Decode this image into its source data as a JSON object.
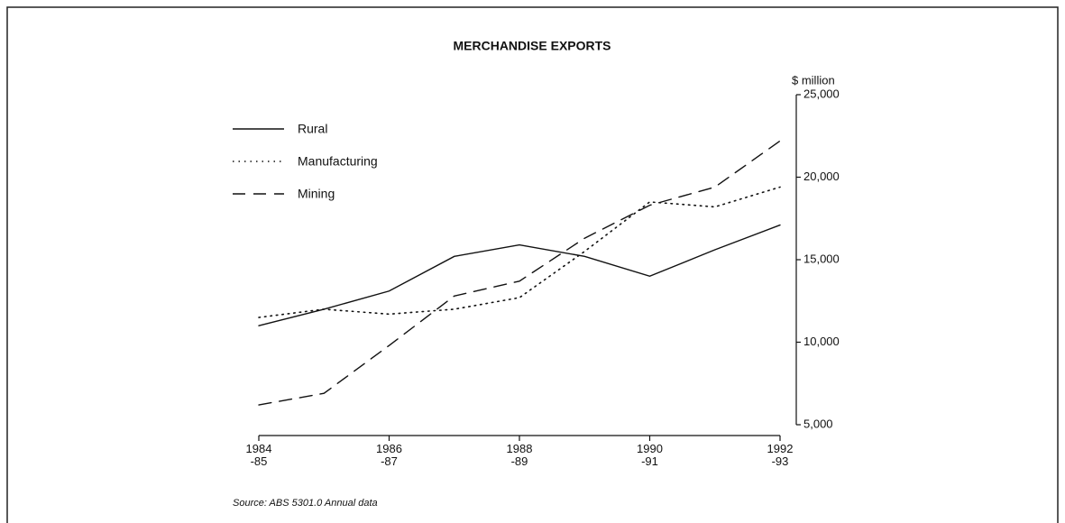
{
  "chart_data": {
    "type": "line",
    "title": "MERCHANDISE EXPORTS",
    "y_label": "$ million",
    "source": "Source: ABS 5301.0 Annual data",
    "categories": [
      "1984\n-85",
      null,
      "1986\n-87",
      null,
      "1988\n-89",
      null,
      "1990\n-91",
      null,
      "1992\n-93"
    ],
    "series": [
      {
        "name": "Rural",
        "color": "#111111",
        "style": "solid",
        "values": [
          11000,
          12000,
          13100,
          15200,
          15900,
          15200,
          14000,
          15600,
          17100
        ]
      },
      {
        "name": "Manufacturing",
        "color": "#111111",
        "style": "dotted",
        "values": [
          11500,
          12000,
          11700,
          12000,
          12700,
          15500,
          18500,
          18200,
          19400
        ]
      },
      {
        "name": "Mining",
        "color": "#111111",
        "style": "dashed",
        "values": [
          6200,
          6900,
          9800,
          12800,
          13700,
          16300,
          18300,
          19400,
          22200
        ]
      }
    ],
    "ylim": [
      5000,
      25000
    ],
    "yticks": [
      {
        "value": 5000,
        "label": "5,000"
      },
      {
        "value": 10000,
        "label": "10,000"
      },
      {
        "value": 15000,
        "label": "15,000"
      },
      {
        "value": 20000,
        "label": "20,000"
      },
      {
        "value": 25000,
        "label": "25,000"
      }
    ],
    "y_axis_side": "right",
    "grid": false,
    "legend": "upper left"
  }
}
